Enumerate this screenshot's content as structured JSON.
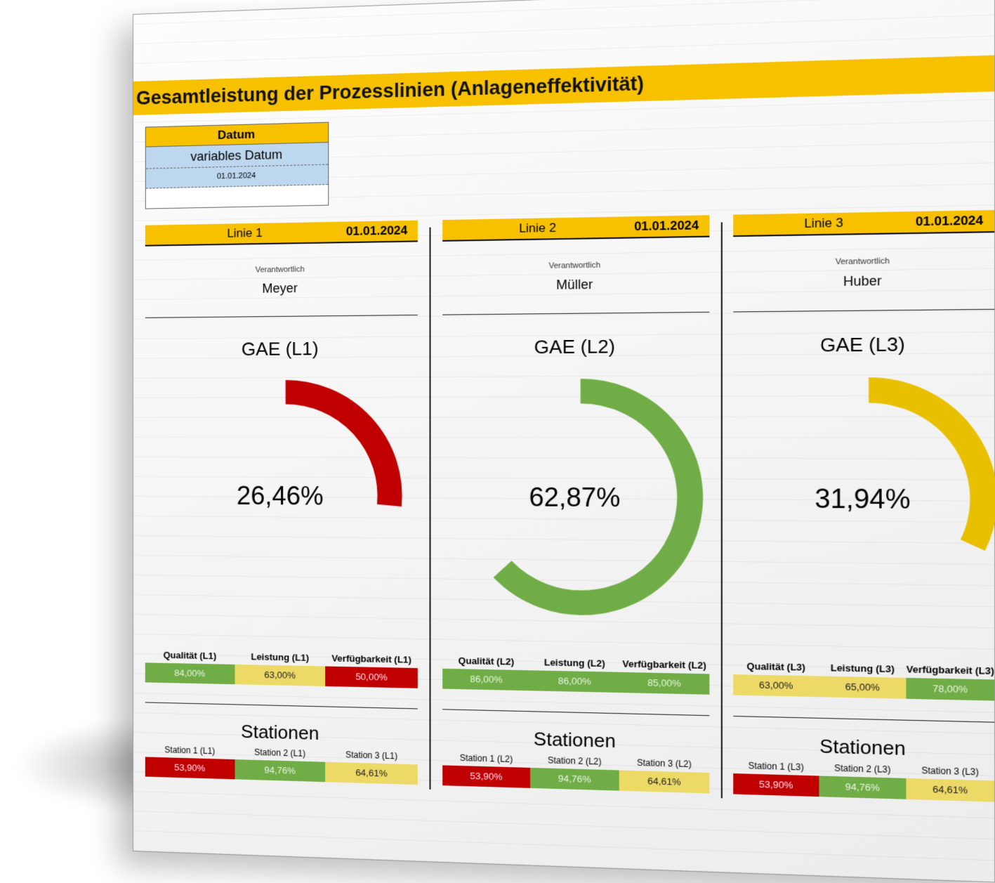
{
  "title": "Gesamtleistung der Prozesslinien (Anlageneffektivität)",
  "datebox": {
    "header": "Datum",
    "label": "variables Datum",
    "value": "01.01.2024"
  },
  "colors": {
    "green": "#70ad47",
    "yellow": "#e8c000",
    "red": "#c00000",
    "accent": "#f7c100"
  },
  "lines": [
    {
      "name": "Linie 1",
      "date": "01.01.2024",
      "resp_label": "Verantwortlich",
      "person": "Meyer",
      "gae_title": "GAE (L1)",
      "gae_value": "26,46%",
      "gae_fraction": 0.2646,
      "gae_color": "#c00000",
      "kpi_labels": [
        "Qualität (L1)",
        "Leistung (L1)",
        "Verfügbarkeit (L1)"
      ],
      "kpi_values": [
        "84,00%",
        "63,00%",
        "50,00%"
      ],
      "kpi_status": [
        "g",
        "y",
        "r"
      ],
      "stations_title": "Stationen",
      "station_labels": [
        "Station 1 (L1)",
        "Station 2 (L1)",
        "Station 3 (L1)"
      ],
      "station_values": [
        "53,90%",
        "94,76%",
        "64,61%"
      ],
      "station_status": [
        "r",
        "g",
        "y"
      ]
    },
    {
      "name": "Linie 2",
      "date": "01.01.2024",
      "resp_label": "Verantwortlich",
      "person": "Müller",
      "gae_title": "GAE (L2)",
      "gae_value": "62,87%",
      "gae_fraction": 0.6287,
      "gae_color": "#70ad47",
      "kpi_labels": [
        "Qualität (L2)",
        "Leistung (L2)",
        "Verfügbarkeit (L2)"
      ],
      "kpi_values": [
        "86,00%",
        "86,00%",
        "85,00%"
      ],
      "kpi_status": [
        "g",
        "g",
        "g"
      ],
      "stations_title": "Stationen",
      "station_labels": [
        "Station 1 (L2)",
        "Station 2 (L2)",
        "Station 3 (L2)"
      ],
      "station_values": [
        "53,90%",
        "94,76%",
        "64,61%"
      ],
      "station_status": [
        "r",
        "g",
        "y"
      ]
    },
    {
      "name": "Linie 3",
      "date": "01.01.2024",
      "resp_label": "Verantwortlich",
      "person": "Huber",
      "gae_title": "GAE (L3)",
      "gae_value": "31,94%",
      "gae_fraction": 0.3194,
      "gae_color": "#e8c000",
      "kpi_labels": [
        "Qualität (L3)",
        "Leistung (L3)",
        "Verfügbarkeit (L3)"
      ],
      "kpi_values": [
        "63,00%",
        "65,00%",
        "78,00%"
      ],
      "kpi_status": [
        "y",
        "y",
        "g"
      ],
      "stations_title": "Stationen",
      "station_labels": [
        "Station 1 (L3)",
        "Station 2 (L3)",
        "Station 3 (L3)"
      ],
      "station_values": [
        "53,90%",
        "94,76%",
        "64,61%"
      ],
      "station_status": [
        "r",
        "g",
        "y"
      ]
    }
  ]
}
